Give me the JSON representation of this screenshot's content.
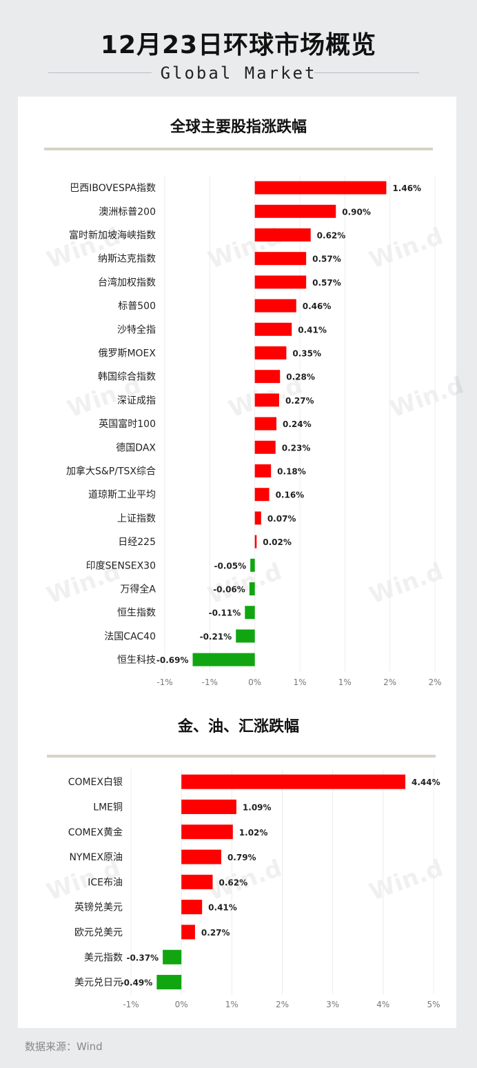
{
  "header": {
    "title": "12月23日环球市场概览",
    "subtitle": "Global Market"
  },
  "watermark": "Win.d",
  "source": "数据来源：Wind",
  "colors": {
    "up": "#ff0000",
    "down": "#11a611",
    "grid": "#ececec",
    "rule": "#d8d2c6"
  },
  "chart_data": [
    {
      "type": "bar",
      "orientation": "horizontal",
      "title": "全球主要股指涨跌幅",
      "categories": [
        "巴西IBOVESPA指数",
        "澳洲标普200",
        "富时新加坡海峡指数",
        "纳斯达克指数",
        "台湾加权指数",
        "标普500",
        "沙特全指",
        "俄罗斯MOEX",
        "韩国综合指数",
        "深证成指",
        "英国富时100",
        "德国DAX",
        "加拿大S&P/TSX综合",
        "道琼斯工业平均",
        "上证指数",
        "日经225",
        "印度SENSEX30",
        "万得全A",
        "恒生指数",
        "法国CAC40",
        "恒生科技"
      ],
      "values": [
        1.46,
        0.9,
        0.62,
        0.57,
        0.57,
        0.46,
        0.41,
        0.35,
        0.28,
        0.27,
        0.24,
        0.23,
        0.18,
        0.16,
        0.07,
        0.02,
        -0.05,
        -0.06,
        -0.11,
        -0.21,
        -0.69
      ],
      "value_labels": [
        "1.46%",
        "0.90%",
        "0.62%",
        "0.57%",
        "0.57%",
        "0.46%",
        "0.41%",
        "0.35%",
        "0.28%",
        "0.27%",
        "0.24%",
        "0.23%",
        "0.18%",
        "0.16%",
        "0.07%",
        "0.02%",
        "-0.05%",
        "-0.06%",
        "-0.11%",
        "-0.21%",
        "-0.69%"
      ],
      "ticks": [
        -1.0,
        -0.5,
        0,
        0.5,
        1.0,
        1.5,
        2.0
      ],
      "tick_labels": [
        "-1%",
        "-1%",
        "0%",
        "1%",
        "1%",
        "2%",
        "2%"
      ],
      "xlim": [
        -1.0,
        2.0
      ],
      "grid": true
    },
    {
      "type": "bar",
      "orientation": "horizontal",
      "title": "金、油、汇涨跌幅",
      "categories": [
        "COMEX白银",
        "LME铜",
        "COMEX黄金",
        "NYMEX原油",
        "ICE布油",
        "英镑兑美元",
        "欧元兑美元",
        "美元指数",
        "美元兑日元"
      ],
      "values": [
        4.44,
        1.09,
        1.02,
        0.79,
        0.62,
        0.41,
        0.27,
        -0.37,
        -0.49
      ],
      "value_labels": [
        "4.44%",
        "1.09%",
        "1.02%",
        "0.79%",
        "0.62%",
        "0.41%",
        "0.27%",
        "-0.37%",
        "-0.49%"
      ],
      "ticks": [
        -1,
        0,
        1,
        2,
        3,
        4,
        5
      ],
      "tick_labels": [
        "-1%",
        "0%",
        "1%",
        "2%",
        "3%",
        "4%",
        "5%"
      ],
      "xlim": [
        -1,
        5
      ],
      "grid": true
    }
  ]
}
